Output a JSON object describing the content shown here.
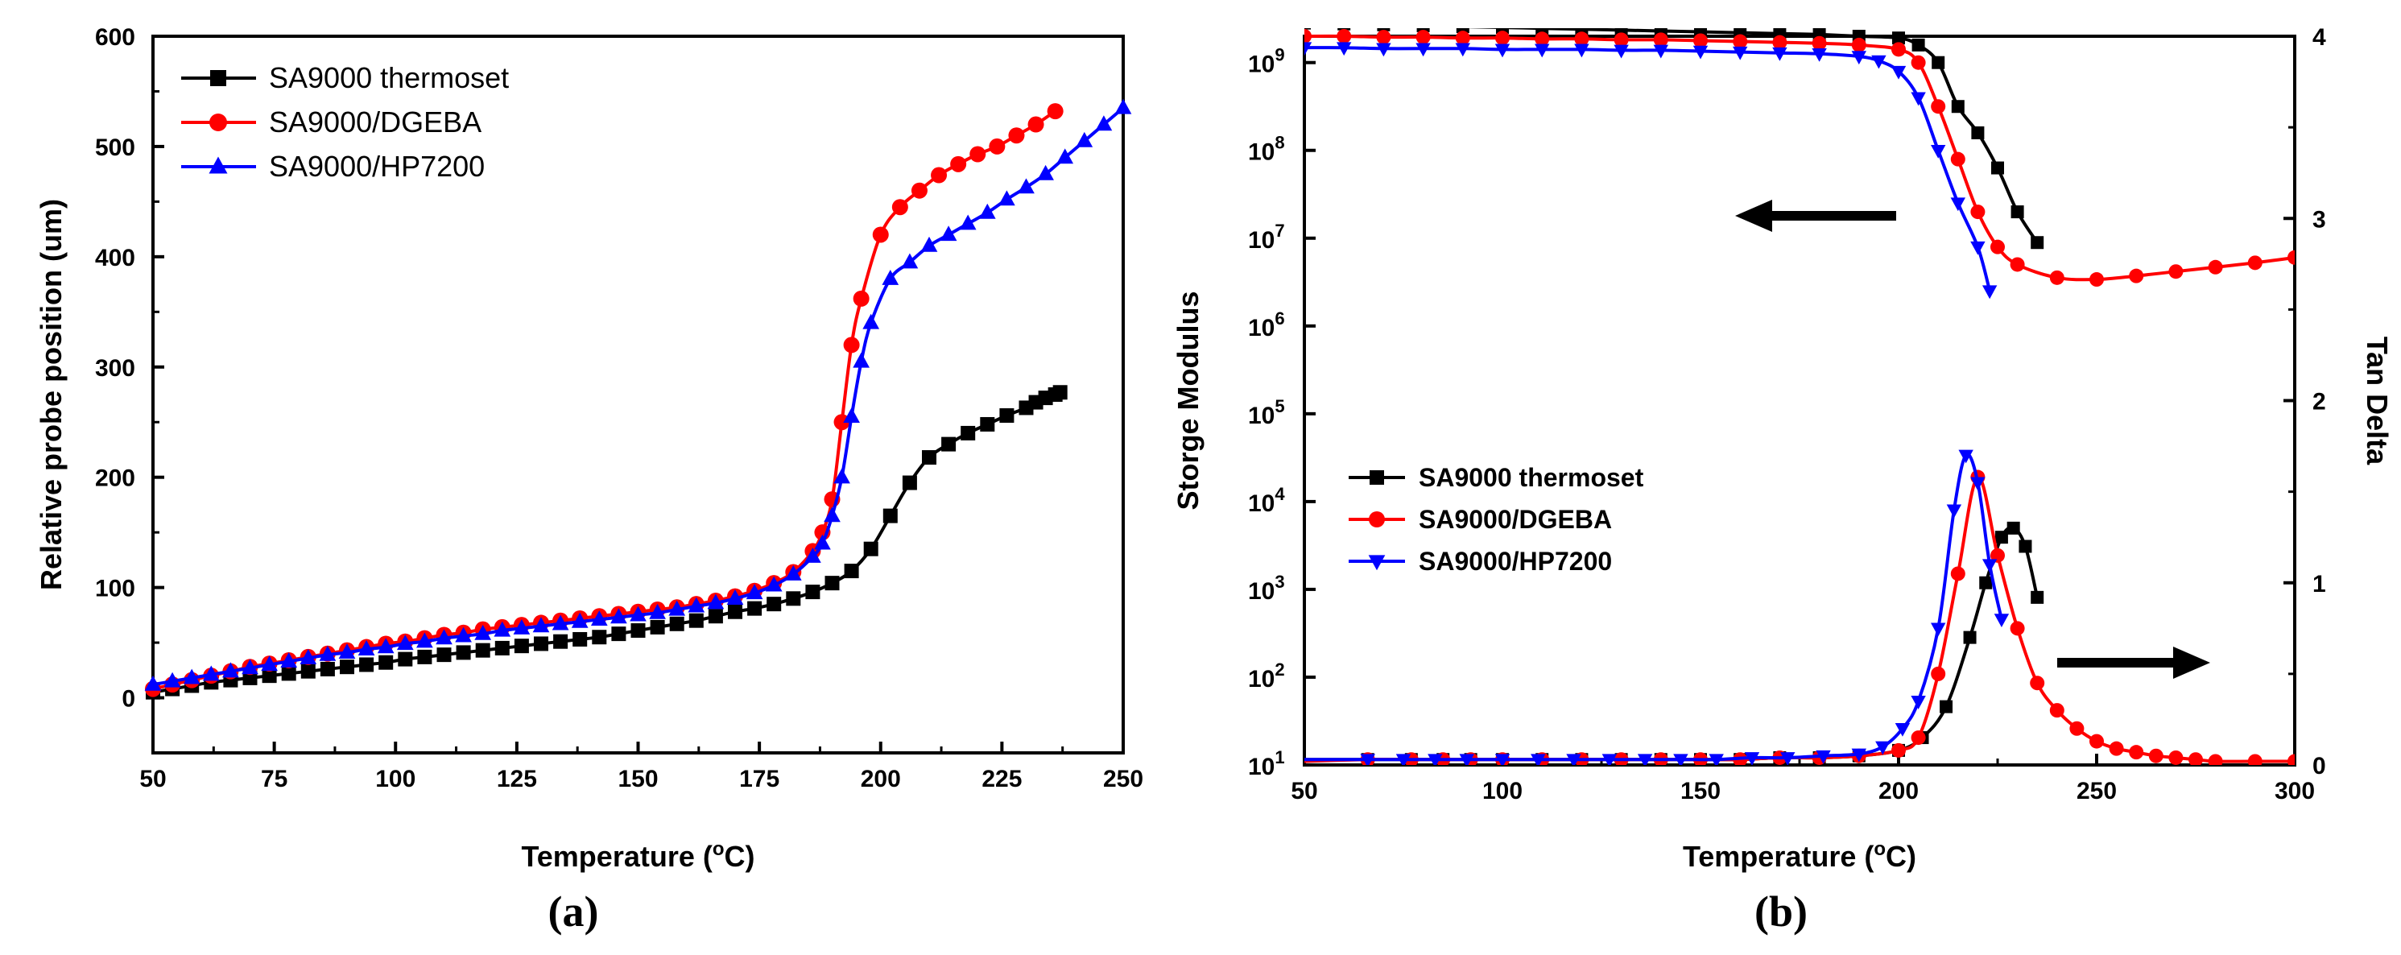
{
  "chart_data": [
    {
      "id": "a",
      "type": "line",
      "panel_label": "(a)",
      "xlabel": "Temperature (",
      "xlabel_unit": "C)",
      "xlabel_degree": "o",
      "ylabel": "Relative probe position (um)",
      "xlim": [
        50,
        250
      ],
      "ylim": [
        -50,
        600
      ],
      "xticks": [
        "50",
        "75",
        "100",
        "125",
        "150",
        "175",
        "200",
        "225",
        "250"
      ],
      "yticks": [
        "0",
        "100",
        "200",
        "300",
        "400",
        "500",
        "600"
      ],
      "legend_position": "top-left",
      "series": [
        {
          "name": "SA9000 thermoset",
          "color": "#000000",
          "marker": "square",
          "x": [
            50,
            54,
            58,
            62,
            66,
            70,
            74,
            78,
            82,
            86,
            90,
            94,
            98,
            102,
            106,
            110,
            114,
            118,
            122,
            126,
            130,
            134,
            138,
            142,
            146,
            150,
            154,
            158,
            162,
            166,
            170,
            174,
            178,
            182,
            186,
            190,
            194,
            198,
            202,
            206,
            210,
            214,
            218,
            222,
            226,
            230,
            232,
            234,
            236,
            237
          ],
          "y": [
            5,
            8,
            11,
            14,
            16,
            18,
            20,
            22,
            24,
            26,
            28,
            30,
            32,
            35,
            37,
            39,
            41,
            43,
            45,
            47,
            49,
            51,
            53,
            55,
            58,
            61,
            64,
            67,
            70,
            74,
            78,
            81,
            85,
            90,
            96,
            104,
            115,
            135,
            165,
            195,
            218,
            230,
            240,
            248,
            256,
            263,
            268,
            272,
            275,
            277
          ]
        },
        {
          "name": "SA9000/DGEBA",
          "color": "#ff0000",
          "marker": "circle",
          "x": [
            50,
            54,
            58,
            62,
            66,
            70,
            74,
            78,
            82,
            86,
            90,
            94,
            98,
            102,
            106,
            110,
            114,
            118,
            122,
            126,
            130,
            134,
            138,
            142,
            146,
            150,
            154,
            158,
            162,
            166,
            170,
            174,
            178,
            182,
            186,
            188,
            190,
            192,
            194,
            196,
            200,
            204,
            208,
            212,
            216,
            220,
            224,
            228,
            232,
            236
          ],
          "y": [
            8,
            12,
            16,
            20,
            24,
            28,
            31,
            34,
            37,
            40,
            43,
            46,
            49,
            51,
            54,
            57,
            59,
            62,
            64,
            66,
            68,
            70,
            72,
            74,
            76,
            78,
            80,
            82,
            85,
            88,
            92,
            97,
            104,
            114,
            133,
            150,
            180,
            250,
            320,
            362,
            420,
            445,
            460,
            474,
            484,
            493,
            500,
            510,
            520,
            532
          ]
        },
        {
          "name": "SA9000/HP7200",
          "color": "#0000ff",
          "marker": "triangle",
          "x": [
            50,
            54,
            58,
            62,
            66,
            70,
            74,
            78,
            82,
            86,
            90,
            94,
            98,
            102,
            106,
            110,
            114,
            118,
            122,
            126,
            130,
            134,
            138,
            142,
            146,
            150,
            154,
            158,
            162,
            166,
            170,
            174,
            178,
            182,
            186,
            188,
            190,
            192,
            194,
            196,
            198,
            202,
            206,
            210,
            214,
            218,
            222,
            226,
            230,
            234,
            238,
            242,
            246,
            250
          ],
          "y": [
            12,
            15,
            18,
            21,
            24,
            27,
            30,
            33,
            36,
            39,
            41,
            44,
            46,
            49,
            51,
            54,
            56,
            58,
            61,
            63,
            65,
            67,
            69,
            71,
            73,
            75,
            77,
            80,
            83,
            86,
            90,
            95,
            102,
            112,
            128,
            140,
            165,
            200,
            255,
            305,
            340,
            380,
            395,
            410,
            420,
            430,
            440,
            452,
            463,
            475,
            490,
            505,
            520,
            535
          ]
        }
      ]
    },
    {
      "id": "b",
      "type": "line",
      "panel_label": "(b)",
      "xlabel": "Temperature (",
      "xlabel_unit": "C)",
      "xlabel_degree": "o",
      "ylabel": "Storge Modulus",
      "ylabel_right": "Tan Delta",
      "xlim": [
        50,
        300
      ],
      "ylim_log": [
        1,
        9.3
      ],
      "ylim_right": [
        0,
        4
      ],
      "xticks": [
        "50",
        "100",
        "150",
        "200",
        "250",
        "300"
      ],
      "yticks_base": "10",
      "yticks_exp": [
        "1",
        "2",
        "3",
        "4",
        "5",
        "6",
        "7",
        "8",
        "9"
      ],
      "yticks_right": [
        "0",
        "1",
        "2",
        "3",
        "4"
      ],
      "legend_position": "lower-left",
      "series": [
        {
          "name": "SA9000 thermoset",
          "color": "#000000",
          "marker": "square",
          "axis": "left",
          "x": [
            50,
            60,
            70,
            80,
            90,
            100,
            110,
            120,
            130,
            140,
            150,
            160,
            170,
            180,
            190,
            200,
            205,
            210,
            215,
            220,
            225,
            230,
            235
          ],
          "y": [
            9.45,
            9.44,
            9.43,
            9.42,
            9.41,
            9.4,
            9.39,
            9.38,
            9.37,
            9.36,
            9.35,
            9.34,
            9.33,
            9.32,
            9.3,
            9.28,
            9.2,
            9.0,
            8.5,
            8.2,
            7.8,
            7.3,
            6.95
          ]
        },
        {
          "name": "SA9000/DGEBA",
          "color": "#ff0000",
          "marker": "circle",
          "axis": "left",
          "x": [
            50,
            60,
            70,
            80,
            90,
            100,
            110,
            120,
            130,
            140,
            150,
            160,
            170,
            180,
            190,
            200,
            205,
            210,
            215,
            220,
            225,
            230,
            240,
            250,
            260,
            270,
            280,
            290,
            300
          ],
          "y": [
            9.3,
            9.3,
            9.29,
            9.29,
            9.28,
            9.28,
            9.27,
            9.27,
            9.26,
            9.26,
            9.25,
            9.24,
            9.23,
            9.22,
            9.2,
            9.15,
            9.0,
            8.5,
            7.9,
            7.3,
            6.9,
            6.7,
            6.55,
            6.53,
            6.57,
            6.62,
            6.67,
            6.72,
            6.78
          ]
        },
        {
          "name": "SA9000/HP7200",
          "color": "#0000ff",
          "marker": "triangle-down",
          "axis": "left",
          "x": [
            50,
            60,
            70,
            80,
            90,
            100,
            110,
            120,
            130,
            140,
            150,
            160,
            170,
            180,
            190,
            195,
            200,
            205,
            210,
            215,
            220,
            223
          ],
          "y": [
            9.17,
            9.17,
            9.16,
            9.16,
            9.16,
            9.15,
            9.15,
            9.15,
            9.14,
            9.14,
            9.13,
            9.12,
            9.11,
            9.1,
            9.07,
            9.02,
            8.9,
            8.6,
            8.0,
            7.4,
            6.9,
            6.4
          ]
        },
        {
          "name": "SA9000 thermoset tan delta",
          "color": "#000000",
          "marker": "square",
          "axis": "right",
          "x": [
            50,
            66,
            77,
            85,
            92,
            100,
            110,
            120,
            130,
            140,
            150,
            160,
            170,
            180,
            190,
            200,
            206,
            212,
            218,
            222,
            226,
            229,
            232,
            235
          ],
          "y": [
            0.03,
            0.03,
            0.03,
            0.03,
            0.03,
            0.03,
            0.03,
            0.03,
            0.03,
            0.03,
            0.03,
            0.03,
            0.04,
            0.04,
            0.05,
            0.08,
            0.15,
            0.32,
            0.7,
            1.0,
            1.25,
            1.3,
            1.2,
            0.92
          ]
        },
        {
          "name": "SA9000/DGEBA tan delta",
          "color": "#ff0000",
          "marker": "circle",
          "axis": "right",
          "x": [
            50,
            66,
            77,
            85,
            92,
            100,
            110,
            120,
            130,
            140,
            150,
            160,
            170,
            180,
            190,
            200,
            205,
            210,
            215,
            220,
            225,
            230,
            235,
            240,
            245,
            250,
            255,
            260,
            265,
            270,
            275,
            280,
            290,
            300
          ],
          "y": [
            0.02,
            0.03,
            0.03,
            0.03,
            0.03,
            0.03,
            0.03,
            0.03,
            0.03,
            0.03,
            0.03,
            0.03,
            0.04,
            0.04,
            0.05,
            0.08,
            0.15,
            0.5,
            1.05,
            1.58,
            1.15,
            0.75,
            0.45,
            0.3,
            0.2,
            0.13,
            0.09,
            0.07,
            0.05,
            0.04,
            0.03,
            0.02,
            0.02,
            0.02
          ]
        },
        {
          "name": "SA9000/HP7200 tan delta",
          "color": "#0000ff",
          "marker": "triangle-down",
          "axis": "right",
          "x": [
            50,
            66,
            75,
            83,
            91,
            100,
            109,
            118,
            127,
            136,
            145,
            154,
            163,
            172,
            181,
            190,
            196,
            201,
            205,
            210,
            214,
            217,
            220,
            223,
            226
          ],
          "y": [
            0.03,
            0.03,
            0.03,
            0.03,
            0.03,
            0.03,
            0.03,
            0.03,
            0.03,
            0.03,
            0.03,
            0.03,
            0.04,
            0.04,
            0.05,
            0.06,
            0.1,
            0.2,
            0.35,
            0.75,
            1.4,
            1.7,
            1.55,
            1.1,
            0.8
          ]
        }
      ]
    }
  ]
}
